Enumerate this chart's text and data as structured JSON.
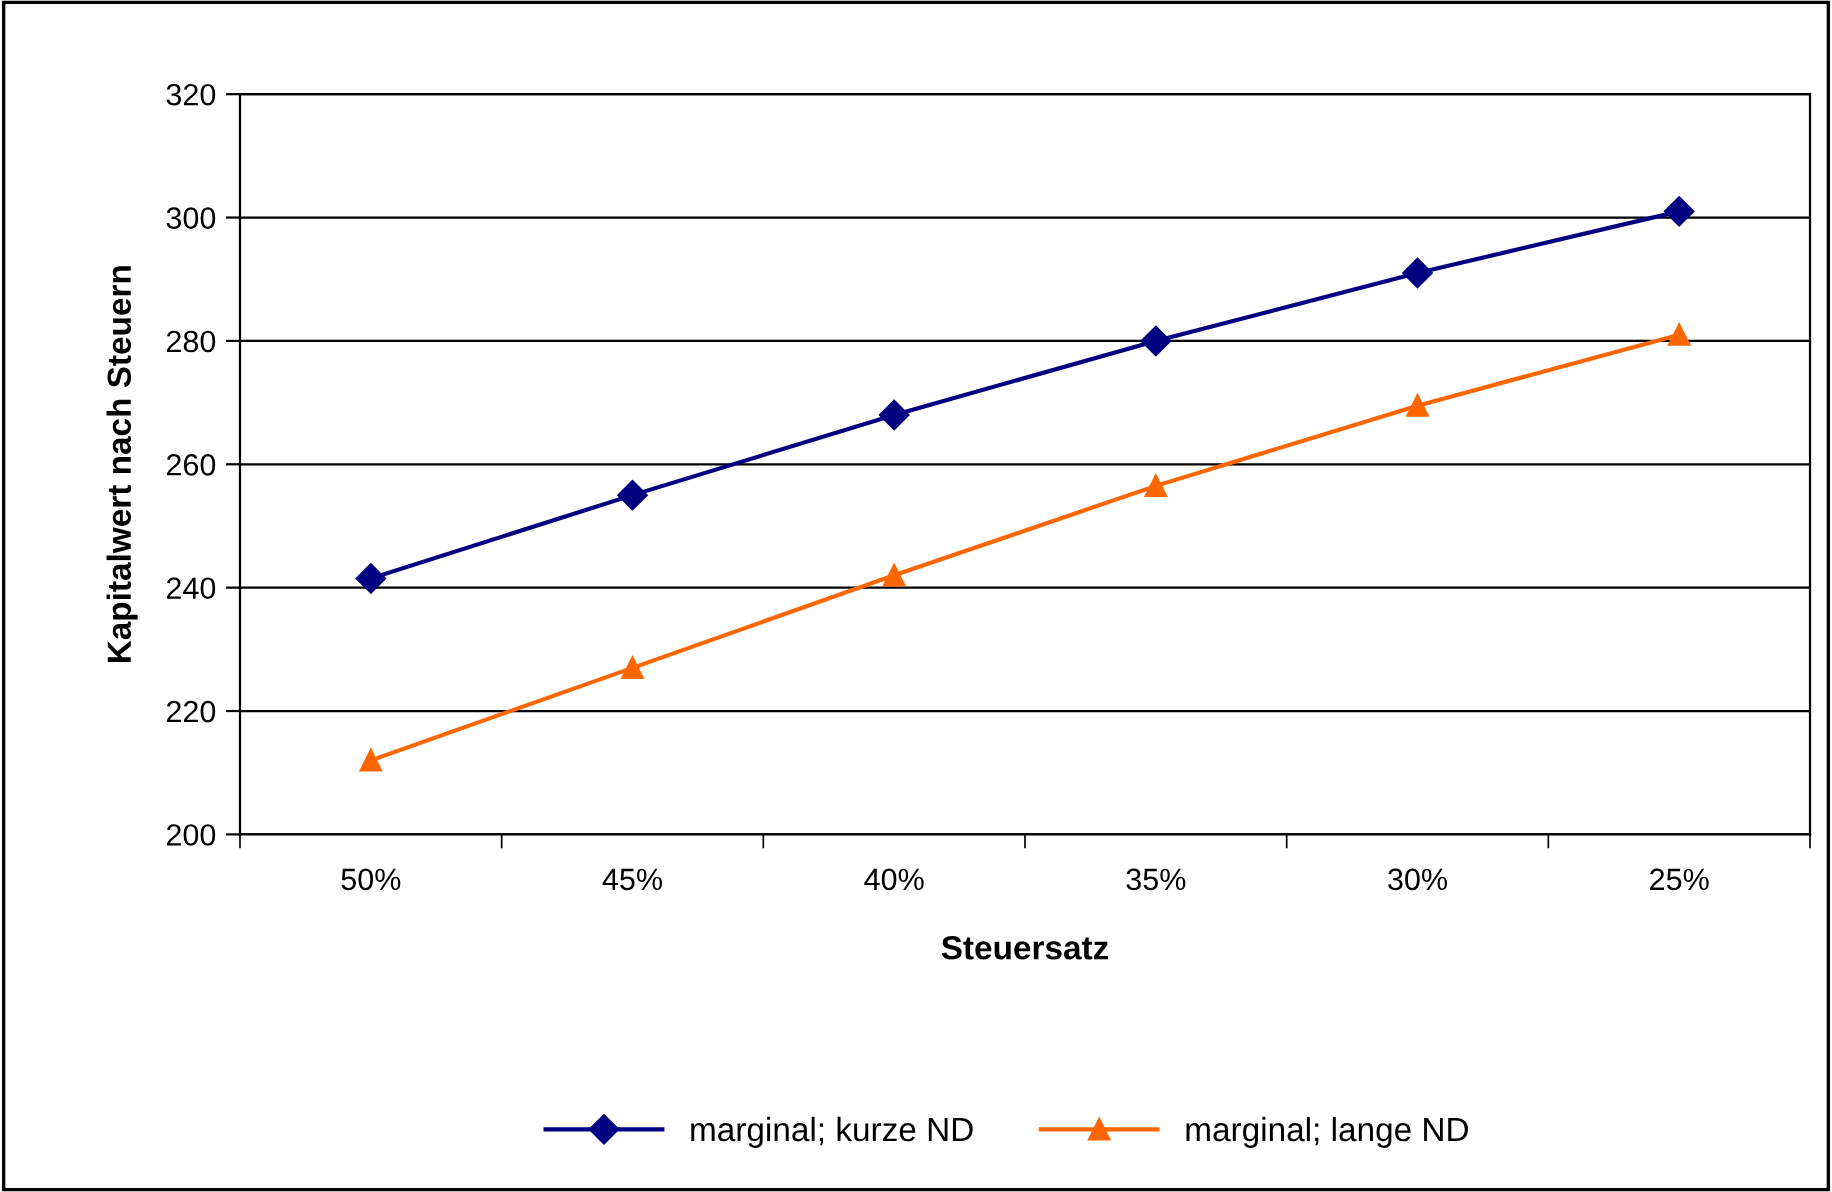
{
  "chart_data": {
    "type": "line",
    "xlabel": "Steuersatz",
    "ylabel": "Kapitalwert nach Steuern",
    "categories": [
      "50%",
      "45%",
      "40%",
      "35%",
      "30%",
      "25%"
    ],
    "series": [
      {
        "name": "marginal; kurze ND",
        "color": "#000080",
        "marker": "diamond",
        "values": [
          241.5,
          255,
          268,
          280,
          291,
          301
        ]
      },
      {
        "name": "marginal; lange ND",
        "color": "#ff6600",
        "marker": "triangle",
        "values": [
          212,
          227,
          242,
          256.5,
          269.5,
          281
        ]
      }
    ],
    "ylim": [
      200,
      320
    ],
    "yticks": [
      200,
      220,
      240,
      260,
      280,
      300,
      320
    ],
    "grid": "y",
    "legend": "bottom",
    "line_style": "solid"
  }
}
